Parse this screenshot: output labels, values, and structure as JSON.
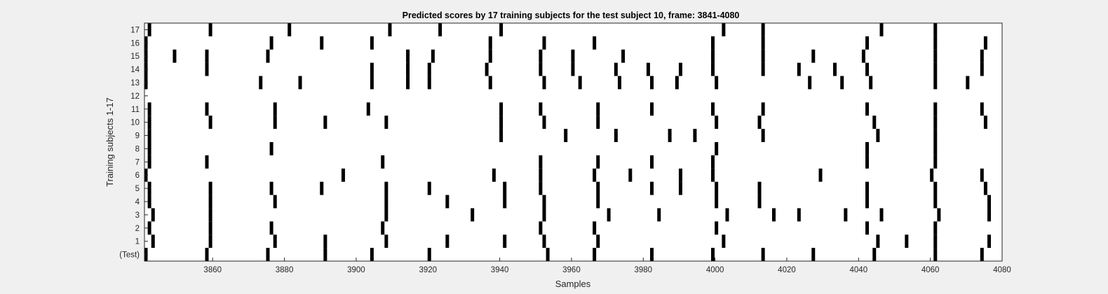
{
  "chart_data": {
    "type": "heatmap",
    "title": "Predicted scores by 17 training subjects for the test subject 10, frame: 3841-4080",
    "xlabel": "Samples",
    "ylabel": "Training subjects 1-17",
    "xlim": [
      3841,
      4080
    ],
    "x_ticks": [
      3860,
      3880,
      3900,
      3920,
      3940,
      3960,
      3980,
      4000,
      4020,
      4040,
      4060,
      4080
    ],
    "y_tick_labels": [
      "(Test)",
      "1",
      "2",
      "3",
      "4",
      "5",
      "6",
      "7",
      "8",
      "9",
      "10",
      "11",
      "12",
      "13",
      "14",
      "15",
      "16",
      "17"
    ],
    "colors": {
      "mark": "#000000",
      "background": "#ffffff",
      "figure": "#f0f0f0"
    },
    "rows": [
      {
        "label": "(Test)",
        "marks": [
          3841,
          3858,
          3875,
          3891,
          3904,
          3920,
          3953,
          3966,
          3982,
          3999,
          4013,
          4027,
          4044,
          4061,
          4074
        ]
      },
      {
        "label": "1",
        "marks": [
          3843,
          3859,
          3877,
          3891,
          3908,
          3925,
          3941,
          3952,
          3967,
          4002,
          4045,
          4053,
          4061,
          4076
        ]
      },
      {
        "label": "2",
        "marks": [
          3842,
          3859,
          3876,
          3907,
          3951,
          3966,
          4000,
          4042,
          4061
        ]
      },
      {
        "label": "3",
        "marks": [
          3843,
          3859,
          3908,
          3932,
          3952,
          3970,
          3984,
          4003,
          4016,
          4023,
          4036,
          4046,
          4062,
          4076
        ]
      },
      {
        "label": "4",
        "marks": [
          3842,
          3859,
          3877,
          3908,
          3925,
          3941,
          3952,
          3967,
          4000,
          4012,
          4042,
          4061,
          4076
        ]
      },
      {
        "label": "5",
        "marks": [
          3842,
          3859,
          3876,
          3890,
          3908,
          3920,
          3941,
          3951,
          3967,
          3982,
          3990,
          4000,
          4012,
          4042,
          4061,
          4075
        ]
      },
      {
        "label": "6",
        "marks": [
          3841,
          3896,
          3938,
          3951,
          3966,
          3976,
          3990,
          3999,
          4029,
          4060,
          4074
        ]
      },
      {
        "label": "7",
        "marks": [
          3842,
          3858,
          3907,
          3951,
          3967,
          3982,
          3999,
          4042,
          4061
        ]
      },
      {
        "label": "8",
        "marks": [
          3842,
          3876,
          4000,
          4042,
          4061
        ]
      },
      {
        "label": "9",
        "marks": [
          3842,
          3940,
          3958,
          3972,
          3987,
          3994,
          4013,
          4045,
          4061
        ]
      },
      {
        "label": "10",
        "marks": [
          3842,
          3859,
          3877,
          3891,
          3908,
          3940,
          3952,
          3967,
          4000,
          4012,
          4044,
          4061,
          4075
        ]
      },
      {
        "label": "11",
        "marks": [
          3842,
          3858,
          3877,
          3903,
          3940,
          3951,
          3967,
          3982,
          3999,
          4013,
          4042,
          4061,
          4074
        ]
      },
      {
        "label": "12",
        "marks": []
      },
      {
        "label": "13",
        "marks": [
          3841,
          3873,
          3884,
          3904,
          3914,
          3920,
          3937,
          3952,
          3962,
          3973,
          3982,
          3989,
          4000,
          4026,
          4035,
          4043,
          4061,
          4070
        ]
      },
      {
        "label": "14",
        "marks": [
          3841,
          3858,
          3904,
          3914,
          3920,
          3936,
          3951,
          3960,
          3972,
          3981,
          3990,
          3999,
          4013,
          4023,
          4033,
          4042,
          4061,
          4074
        ]
      },
      {
        "label": "15",
        "marks": [
          3841,
          3849,
          3858,
          3875,
          3914,
          3921,
          3937,
          3951,
          3960,
          3974,
          3999,
          4013,
          4027,
          4041,
          4061,
          4074
        ]
      },
      {
        "label": "16",
        "marks": [
          3841,
          3876,
          3890,
          3904,
          3937,
          3952,
          3966,
          3999,
          4013,
          4042,
          4061,
          4075
        ]
      },
      {
        "label": "17",
        "marks": [
          3842,
          3859,
          3881,
          3909,
          3923,
          3940,
          4002,
          4013,
          4046,
          4061
        ]
      }
    ]
  }
}
